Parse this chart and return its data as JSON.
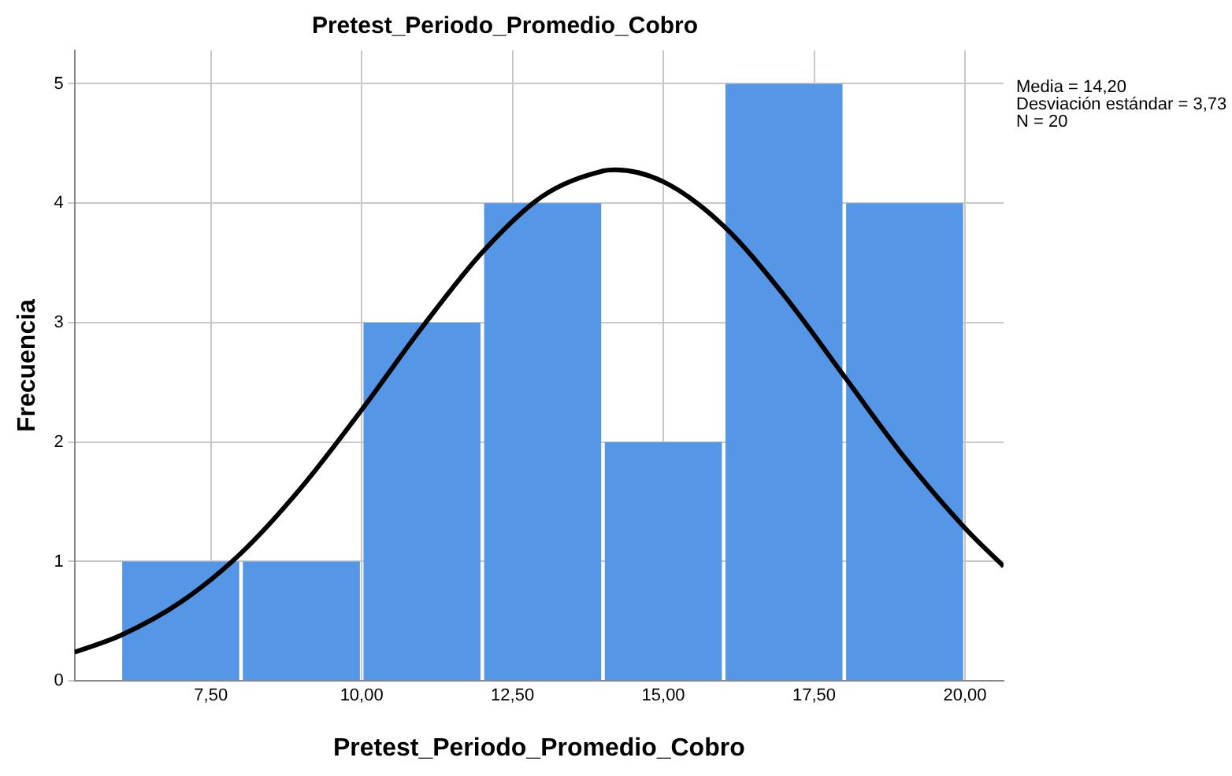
{
  "chart_data": {
    "type": "histogram",
    "title": "Pretest_Periodo_Promedio_Cobro",
    "xlabel": "Pretest_Periodo_Promedio_Cobro",
    "ylabel": "Frecuencia",
    "bins": [
      6,
      8,
      10,
      12,
      14,
      16,
      18,
      20
    ],
    "values": [
      1,
      1,
      3,
      4,
      2,
      5,
      4
    ],
    "color": "#5596e6",
    "series": [
      {
        "type": "line",
        "color": "#000000",
        "marker": "none",
        "x": [
          5.24,
          6,
          7,
          8,
          9,
          10,
          11,
          12,
          13,
          14,
          14.2,
          15,
          16,
          17,
          18,
          19,
          20,
          20.64
        ],
        "values": [
          0.24,
          0.38,
          0.66,
          1.07,
          1.62,
          2.27,
          2.96,
          3.59,
          4.06,
          4.27,
          4.28,
          4.18,
          3.81,
          3.23,
          2.55,
          1.87,
          1.28,
          0.96
        ]
      }
    ],
    "xlim": [
      5.24,
      20.64
    ],
    "xticks": [
      {
        "value": 7.5,
        "label": "7,50"
      },
      {
        "value": 10,
        "label": "10,00"
      },
      {
        "value": 12.5,
        "label": "12,50"
      },
      {
        "value": 15,
        "label": "15,00"
      },
      {
        "value": 17.5,
        "label": "17,50"
      },
      {
        "value": 20,
        "label": "20,00"
      }
    ],
    "ylim": [
      0,
      5.28
    ],
    "yticks": [
      0,
      1,
      2,
      3,
      4,
      5
    ],
    "grid": true,
    "legend": false,
    "annotations": [
      "Media = 14,20",
      "Desviación estándar = 3,73",
      "N = 20"
    ]
  }
}
